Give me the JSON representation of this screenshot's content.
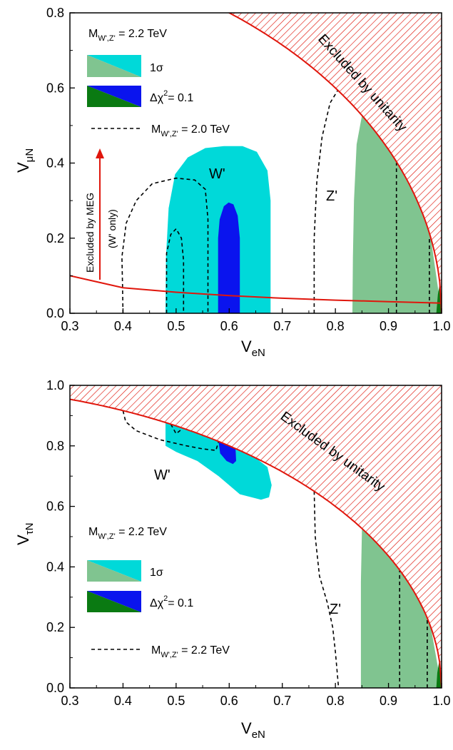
{
  "colors": {
    "one_sigma_wz": "#00d9d9",
    "one_sigma_z": "#80c490",
    "delta_wz": "#0a14ee",
    "delta_z": "#0a7a12",
    "unitarity": "#e0160c",
    "meg_arrow": "#e0160c",
    "dashed": "#000000"
  },
  "chart_data": [
    {
      "type": "area",
      "xlabel": "V",
      "xlabel_sub": "eN",
      "ylabel": "V",
      "ylabel_sub": "μN",
      "xlim": [
        0.3,
        1.0
      ],
      "ylim": [
        0.0,
        0.8
      ],
      "xticks": [
        "0.3",
        "0.4",
        "0.5",
        "0.6",
        "0.7",
        "0.8",
        "0.9",
        "1.0"
      ],
      "yticks": [
        "0.0",
        "0.2",
        "0.4",
        "0.6",
        "0.8"
      ],
      "legend": {
        "mass_pre": "M",
        "mass_sub": "W',Z'",
        "mass_post": " = 2.2 TeV",
        "one_sigma": "1σ",
        "delta_pre": "Δχ",
        "delta_sup": "2",
        "delta_post": "= 0.1",
        "dashed_pre": "M",
        "dashed_sub": "W',Z'",
        "dashed_post": " = 2.0 TeV"
      },
      "annotations": {
        "unitarity": "Excluded by unitarity",
        "meg_line1": "Excluded by MEG",
        "meg_line2": "(W' only)",
        "w_label": "W'",
        "z_label": "Z'"
      },
      "unitarity_boundary": "V_eN^2 + V_μN^2 = 1",
      "meg_bound": [
        {
          "x": 0.3,
          "y": 0.1
        },
        {
          "x": 0.4,
          "y": 0.068
        },
        {
          "x": 0.5,
          "y": 0.056
        },
        {
          "x": 0.6,
          "y": 0.047
        },
        {
          "x": 0.7,
          "y": 0.04
        },
        {
          "x": 0.8,
          "y": 0.035
        },
        {
          "x": 0.9,
          "y": 0.031
        },
        {
          "x": 1.0,
          "y": 0.027
        }
      ],
      "series": [
        {
          "region": "W' 1σ",
          "polygon": [
            [
              0.48,
              0.0
            ],
            [
              0.678,
              0.0
            ],
            [
              0.678,
              0.3
            ],
            [
              0.672,
              0.38
            ],
            [
              0.652,
              0.43
            ],
            [
              0.625,
              0.445
            ],
            [
              0.59,
              0.445
            ],
            [
              0.555,
              0.44
            ],
            [
              0.522,
              0.415
            ],
            [
              0.498,
              0.37
            ],
            [
              0.486,
              0.28
            ],
            [
              0.481,
              0.15
            ],
            [
              0.48,
              0.0
            ]
          ]
        },
        {
          "region": "W' Δχ²=0.1",
          "polygon": [
            [
              0.579,
              0.0
            ],
            [
              0.62,
              0.0
            ],
            [
              0.62,
              0.2
            ],
            [
              0.616,
              0.26
            ],
            [
              0.608,
              0.29
            ],
            [
              0.599,
              0.295
            ],
            [
              0.59,
              0.285
            ],
            [
              0.582,
              0.25
            ],
            [
              0.579,
              0.2
            ],
            [
              0.579,
              0.0
            ]
          ]
        },
        {
          "region": "Z' 1σ",
          "polygon": [
            [
              0.832,
              0.0
            ],
            [
              1.0,
              0.0
            ],
            [
              0.9798,
              0.2
            ],
            [
              0.9539,
              0.3
            ],
            [
              0.9165,
              0.4
            ],
            [
              0.9,
              0.436
            ],
            [
              0.87,
              0.493
            ],
            [
              0.85,
              0.527
            ],
            [
              0.84,
              0.45
            ],
            [
              0.835,
              0.3
            ],
            [
              0.833,
              0.15
            ],
            [
              0.832,
              0.0
            ]
          ]
        },
        {
          "region": "Z' Δχ²=0.1",
          "polygon": [
            [
              0.99,
              0.0
            ],
            [
              1.0,
              0.0
            ],
            [
              0.9987,
              0.05
            ],
            [
              0.9968,
              0.08
            ],
            [
              0.993,
              0.05
            ],
            [
              0.99,
              0.0
            ]
          ]
        },
        {
          "region": "W' 2.0 TeV dashed",
          "line": [
            [
              0.4,
              0.0
            ],
            [
              0.399,
              0.08
            ],
            [
              0.398,
              0.15
            ],
            [
              0.406,
              0.24
            ],
            [
              0.425,
              0.3
            ],
            [
              0.455,
              0.345
            ],
            [
              0.5,
              0.36
            ],
            [
              0.535,
              0.355
            ],
            [
              0.555,
              0.33
            ],
            [
              0.56,
              0.25
            ],
            [
              0.56,
              0.0
            ]
          ]
        },
        {
          "region": "W' 2.0 TeV dashed inner",
          "line": [
            [
              0.482,
              0.0
            ],
            [
              0.482,
              0.16
            ],
            [
              0.49,
              0.21
            ],
            [
              0.5,
              0.225
            ],
            [
              0.51,
              0.2
            ],
            [
              0.514,
              0.14
            ],
            [
              0.514,
              0.0
            ]
          ]
        },
        {
          "region": "Z' 2.0 TeV dashed",
          "line": [
            [
              0.76,
              0.0
            ],
            [
              0.76,
              0.2
            ],
            [
              0.765,
              0.35
            ],
            [
              0.775,
              0.47
            ],
            [
              0.79,
              0.56
            ],
            [
              0.805,
              0.595
            ]
          ]
        },
        {
          "region": "Z' 2.0 TeV dashed inner 1",
          "line": [
            [
              0.915,
              0.0
            ],
            [
              0.915,
              0.4
            ]
          ]
        },
        {
          "region": "Z' 2.0 TeV dashed inner 2",
          "line": [
            [
              0.977,
              0.0
            ],
            [
              0.977,
              0.2
            ]
          ]
        }
      ]
    },
    {
      "type": "area",
      "xlabel": "V",
      "xlabel_sub": "eN",
      "ylabel": "V",
      "ylabel_sub": "τN",
      "xlim": [
        0.3,
        1.0
      ],
      "ylim": [
        0.0,
        1.0
      ],
      "xticks": [
        "0.3",
        "0.4",
        "0.5",
        "0.6",
        "0.7",
        "0.8",
        "0.9",
        "1.0"
      ],
      "yticks": [
        "0.0",
        "0.2",
        "0.4",
        "0.6",
        "0.8",
        "1.0"
      ],
      "legend": {
        "mass_pre": "M",
        "mass_sub": "W',Z'",
        "mass_post": " = 2.2 TeV",
        "one_sigma": "1σ",
        "delta_pre": "Δχ",
        "delta_sup": "2",
        "delta_post": "= 0.1",
        "dashed_pre": "M",
        "dashed_sub": "W',Z'",
        "dashed_post": " = 2.2 TeV"
      },
      "annotations": {
        "unitarity": "Excluded by unitarity",
        "w_label": "W'",
        "z_label": "Z'"
      },
      "unitarity_boundary": "V_eN^2 + V_τN^2 = 1",
      "series": [
        {
          "region": "W' 1σ",
          "polygon": [
            [
              0.48,
              0.8773
            ],
            [
              0.5,
              0.866
            ],
            [
              0.55,
              0.8352
            ],
            [
              0.6,
              0.8
            ],
            [
              0.65,
              0.76
            ],
            [
              0.672,
              0.73
            ],
            [
              0.68,
              0.67
            ],
            [
              0.675,
              0.63
            ],
            [
              0.66,
              0.622
            ],
            [
              0.62,
              0.64
            ],
            [
              0.58,
              0.7
            ],
            [
              0.54,
              0.75
            ],
            [
              0.5,
              0.78
            ],
            [
              0.48,
              0.8
            ],
            [
              0.48,
              0.8773
            ]
          ]
        },
        {
          "region": "W' Δχ²=0.1",
          "polygon": [
            [
              0.58,
              0.8146
            ],
            [
              0.6,
              0.8
            ],
            [
              0.612,
              0.7906
            ],
            [
              0.613,
              0.75
            ],
            [
              0.607,
              0.74
            ],
            [
              0.595,
              0.75
            ],
            [
              0.583,
              0.775
            ],
            [
              0.58,
              0.8146
            ]
          ]
        },
        {
          "region": "Z' 1σ",
          "polygon": [
            [
              0.848,
              0.0
            ],
            [
              1.0,
              0.0
            ],
            [
              0.9798,
              0.2
            ],
            [
              0.9539,
              0.3
            ],
            [
              0.9165,
              0.4
            ],
            [
              0.87,
              0.493
            ],
            [
              0.85,
              0.527
            ],
            [
              0.848,
              0.35
            ],
            [
              0.848,
              0.0
            ]
          ]
        },
        {
          "region": "Z' Δχ²=0.1",
          "polygon": [
            [
              0.99,
              0.0
            ],
            [
              1.0,
              0.0
            ],
            [
              0.998,
              0.06
            ],
            [
              0.9957,
              0.09
            ],
            [
              0.992,
              0.05
            ],
            [
              0.99,
              0.0
            ]
          ]
        },
        {
          "region": "W' 2.2 TeV dashed",
          "line": [
            [
              0.4,
              0.9165
            ],
            [
              0.405,
              0.88
            ],
            [
              0.425,
              0.85
            ],
            [
              0.47,
              0.82
            ],
            [
              0.52,
              0.8
            ],
            [
              0.55,
              0.79
            ],
            [
              0.575,
              0.785
            ],
            [
              0.58,
              0.8146
            ]
          ]
        },
        {
          "region": "W' 2.2 TeV dashed inner",
          "line": [
            [
              0.49,
              0.8717
            ],
            [
              0.5,
              0.84
            ],
            [
              0.513,
              0.858
            ]
          ]
        },
        {
          "region": "Z' 2.2 TeV dashed",
          "line": [
            [
              0.76,
              0.65
            ],
            [
              0.762,
              0.5
            ],
            [
              0.77,
              0.37
            ],
            [
              0.785,
              0.28
            ],
            [
              0.795,
              0.2
            ],
            [
              0.8,
              0.12
            ],
            [
              0.806,
              0.0
            ]
          ]
        },
        {
          "region": "Z' 2.2 TeV dashed inner 1",
          "line": [
            [
              0.921,
              0.0
            ],
            [
              0.921,
              0.39
            ]
          ]
        },
        {
          "region": "Z' 2.2 TeV dashed inner 2",
          "line": [
            [
              0.973,
              0.0
            ],
            [
              0.973,
              0.23
            ]
          ]
        }
      ]
    }
  ]
}
